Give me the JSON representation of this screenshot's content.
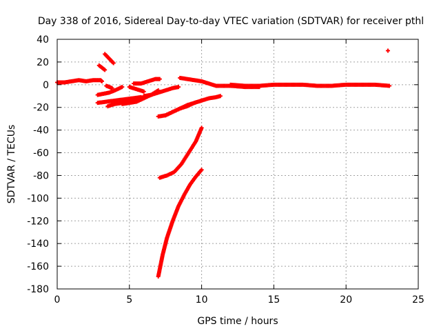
{
  "chart_data": {
    "type": "scatter",
    "title": "Day 338 of 2016, Sidereal Day-to-day VTEC variation (SDTVAR) for receiver pthl",
    "xlabel": "GPS time / hours",
    "ylabel": "SDTVAR / TECUs",
    "xlim": [
      0,
      25
    ],
    "ylim": [
      -180,
      40
    ],
    "x_ticks": [
      0,
      5,
      10,
      15,
      20,
      25
    ],
    "y_ticks": [
      40,
      20,
      0,
      -20,
      -40,
      -60,
      -80,
      -100,
      -120,
      -140,
      -160,
      -180
    ],
    "grid": true,
    "legend": "none",
    "marker_color": "#ff0000",
    "segments": [
      {
        "x": [
          0.0,
          0.5,
          1.0,
          1.5,
          2.0,
          2.5,
          3.0,
          3.1
        ],
        "y": [
          2,
          2,
          3,
          4,
          3,
          4,
          4,
          3
        ]
      },
      {
        "x": [
          2.9,
          3.1,
          3.3
        ],
        "y": [
          17,
          15,
          13
        ]
      },
      {
        "x": [
          3.3,
          3.6,
          3.9
        ],
        "y": [
          27,
          23,
          19
        ]
      },
      {
        "x": [
          3.4,
          3.6,
          3.8
        ],
        "y": [
          -1,
          -2,
          -3
        ]
      },
      {
        "x": [
          2.8,
          3.2,
          3.6,
          4.0,
          4.5
        ],
        "y": [
          -9,
          -8,
          -7,
          -5,
          -2
        ]
      },
      {
        "x": [
          2.8,
          3.4,
          4.0,
          4.6,
          5.2,
          5.8
        ],
        "y": [
          -16,
          -15,
          -14,
          -13,
          -12,
          -11
        ]
      },
      {
        "x": [
          3.5,
          4.0,
          4.5,
          5.0,
          5.5,
          6.0,
          6.5
        ],
        "y": [
          -19,
          -17,
          -16,
          -15,
          -13,
          -11,
          -9
        ]
      },
      {
        "x": [
          4.5,
          5.0,
          5.5,
          6.0,
          6.5,
          7.0
        ],
        "y": [
          -17,
          -16,
          -15,
          -12,
          -9,
          -5
        ]
      },
      {
        "x": [
          5.0,
          5.5,
          6.0
        ],
        "y": [
          -2,
          -4,
          -6
        ]
      },
      {
        "x": [
          5.3,
          5.8,
          6.3,
          6.8,
          7.1
        ],
        "y": [
          1,
          1,
          3,
          5,
          5
        ]
      },
      {
        "x": [
          6.0,
          6.5,
          7.0,
          7.5,
          8.0,
          8.4
        ],
        "y": [
          -10,
          -9,
          -7,
          -5,
          -3,
          -2
        ]
      },
      {
        "x": [
          7.0,
          7.5,
          8.0,
          8.5,
          9.0,
          9.5,
          10.0,
          10.5,
          11.0,
          11.3
        ],
        "y": [
          -28,
          -27,
          -24,
          -21,
          -18,
          -16,
          -14,
          -12,
          -11,
          -10
        ]
      },
      {
        "x": [
          7.5,
          8.0,
          8.5,
          9.0,
          9.5,
          10.0
        ],
        "y": [
          -27,
          -24,
          -21,
          -19,
          -16,
          -14
        ]
      },
      {
        "x": [
          8.5,
          9.0,
          9.5,
          10.0,
          10.5,
          11.0,
          12.0,
          13.0,
          14.0
        ],
        "y": [
          6,
          5,
          4,
          3,
          1,
          -1,
          -1,
          -2,
          -2
        ]
      },
      {
        "x": [
          12.0,
          13.0,
          14.0,
          15.0,
          16.0,
          17.0,
          18.0,
          19.0,
          20.0,
          21.0,
          22.0,
          23.0
        ],
        "y": [
          0,
          -1,
          -1,
          0,
          0,
          0,
          -1,
          -1,
          0,
          0,
          0,
          -1
        ]
      },
      {
        "x": [
          7.1,
          7.6,
          8.1,
          8.6,
          9.1,
          9.6,
          10.0
        ],
        "y": [
          -82,
          -80,
          -77,
          -70,
          -60,
          -50,
          -38
        ]
      },
      {
        "x": [
          7.0,
          7.3,
          7.6,
          8.0,
          8.4,
          8.8,
          9.2,
          9.6,
          10.0
        ],
        "y": [
          -169,
          -150,
          -135,
          -120,
          -107,
          -97,
          -88,
          -81,
          -75
        ]
      },
      {
        "x": [
          22.9
        ],
        "y": [
          30
        ]
      }
    ]
  }
}
